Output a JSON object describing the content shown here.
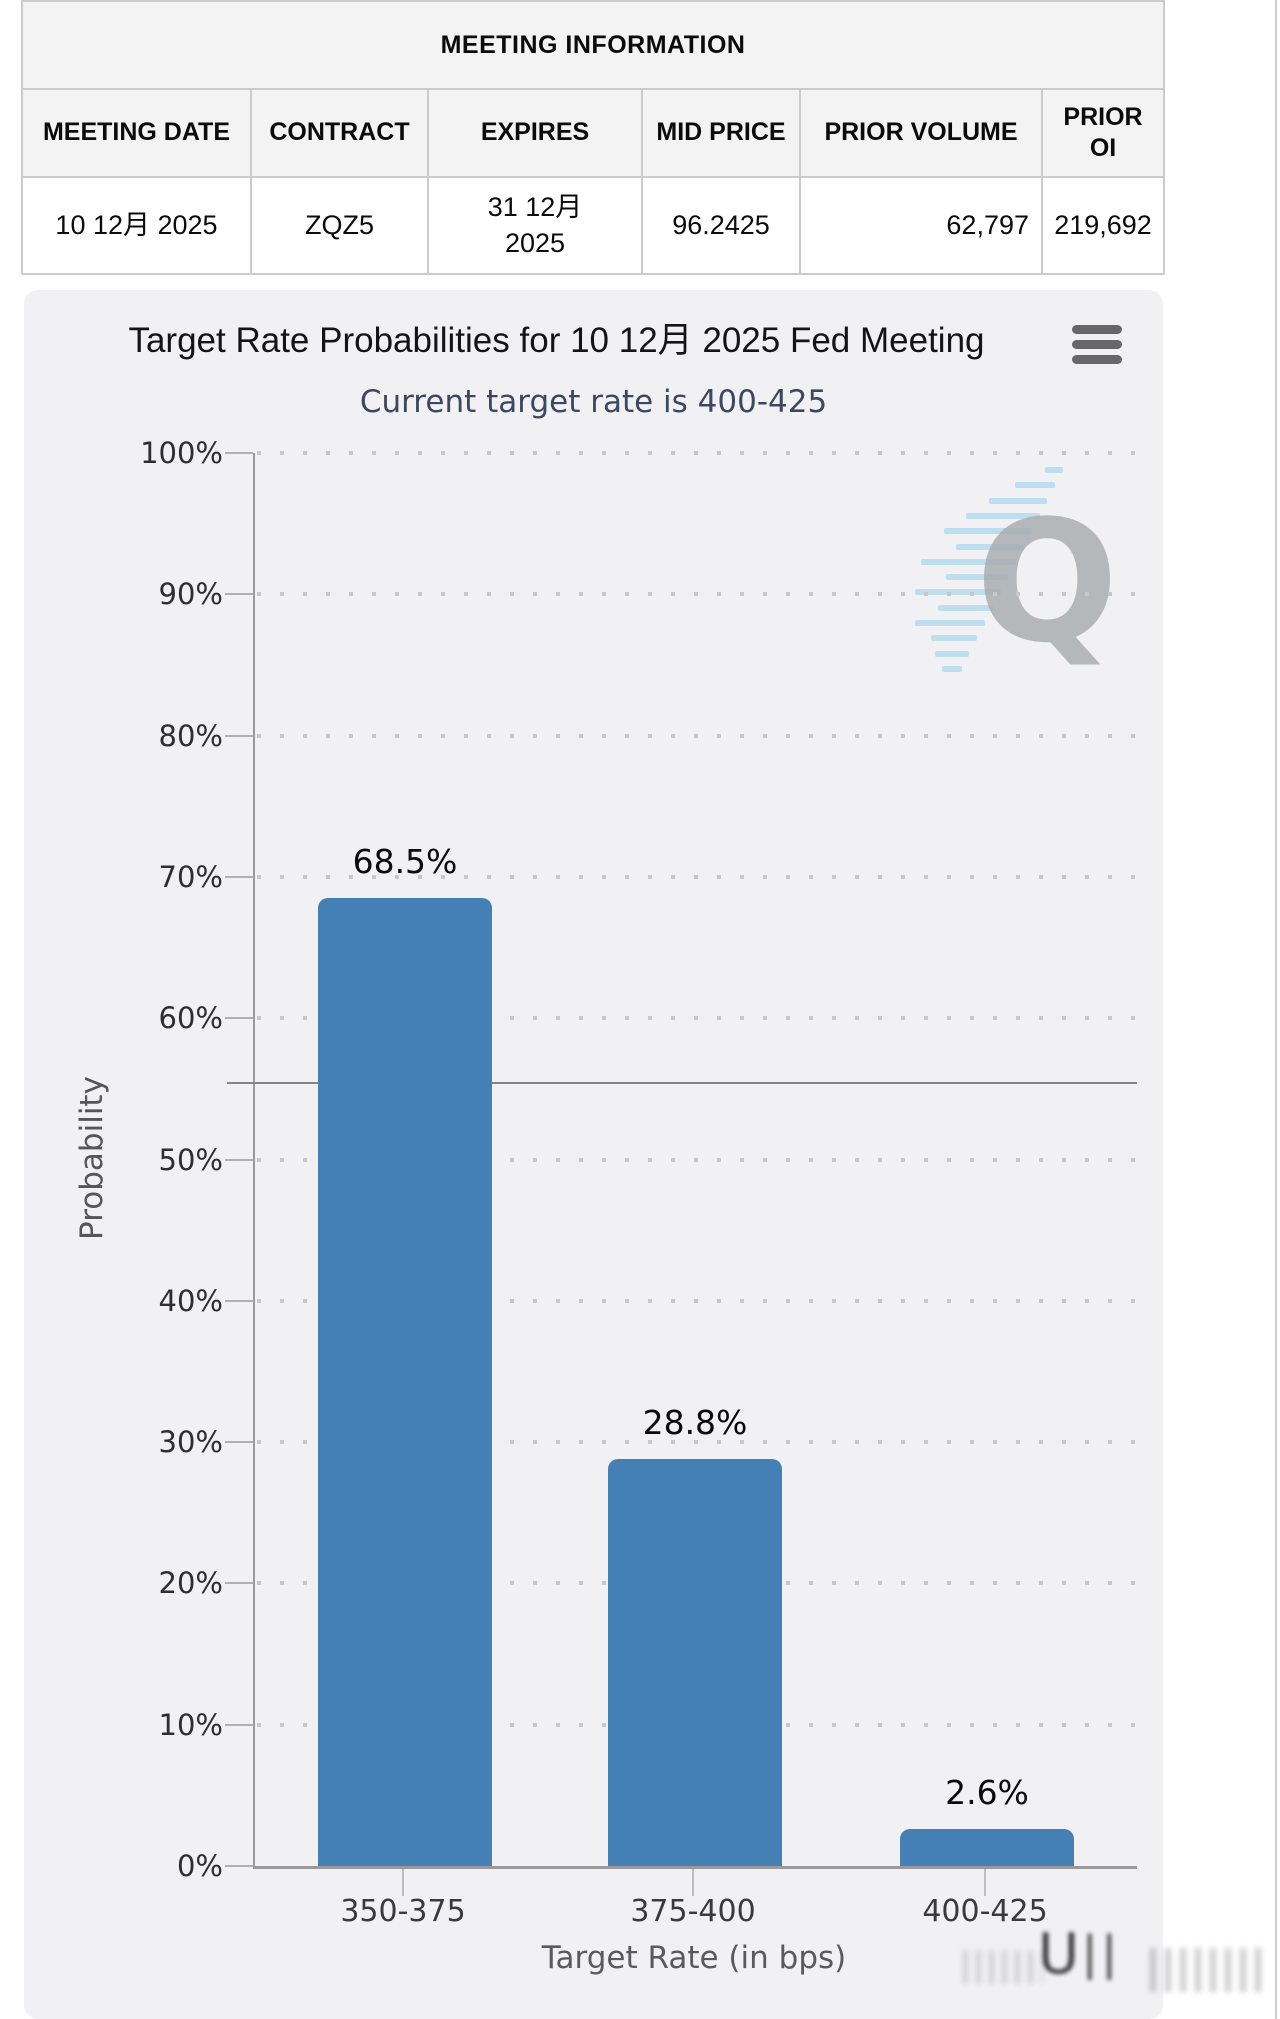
{
  "meeting_table": {
    "title": "MEETING INFORMATION",
    "columns": [
      "MEETING DATE",
      "CONTRACT",
      "EXPIRES",
      "MID PRICE",
      "PRIOR VOLUME",
      "PRIOR OI"
    ],
    "row": {
      "meeting_date": "10 12月 2025",
      "contract": "ZQZ5",
      "expires": "31 12月 2025",
      "mid_price": "96.2425",
      "prior_volume": "62,797",
      "prior_oi": "219,692"
    }
  },
  "chart_data": {
    "type": "bar",
    "title": "Target Rate Probabilities for 10 12月 2025 Fed Meeting",
    "subtitle": "Current target rate is 400-425",
    "categories": [
      "350-375",
      "375-400",
      "400-425"
    ],
    "values": [
      68.5,
      28.8,
      2.6
    ],
    "bar_labels": [
      "68.5%",
      "28.8%",
      "2.6%"
    ],
    "xlabel": "Target Rate (in bps)",
    "ylabel": "Probability",
    "ylim": [
      0,
      100
    ],
    "ytick_step": 10,
    "ytick_suffix": "%",
    "grid": "dotted-horizontal",
    "legend": "none",
    "reference_line_pct": 55.4,
    "bar_color": "#4480b5",
    "watermark_letter": "Q"
  },
  "icons": {
    "menu": "hamburger-icon"
  }
}
